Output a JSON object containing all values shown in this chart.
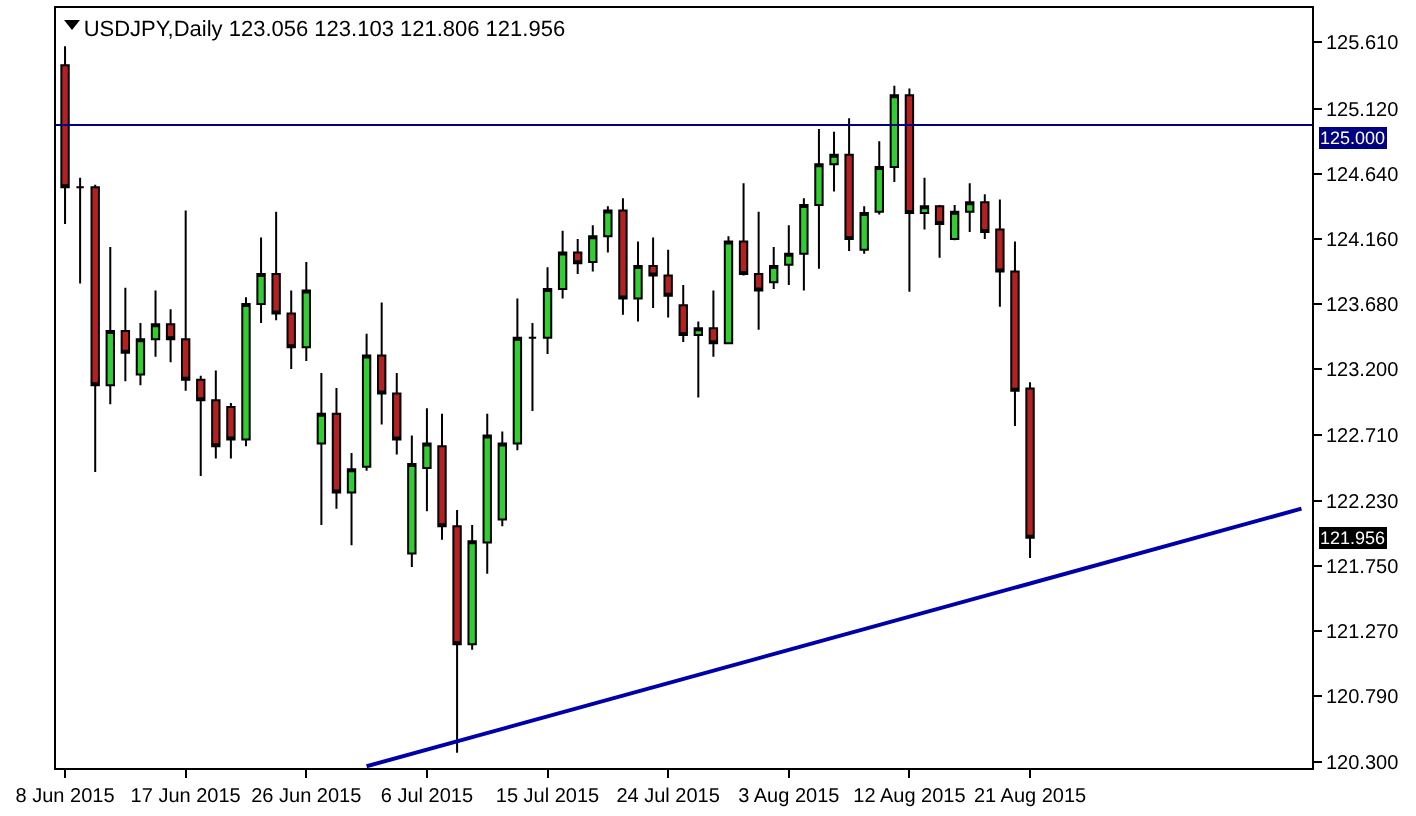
{
  "chart_data": {
    "type": "candlestick",
    "title": "USDJPY,Daily 123.056 123.103 121.806 121.956",
    "categories": [
      "8 Jun 2015",
      null,
      null,
      null,
      null,
      null,
      null,
      null,
      "17 Jun 2015",
      null,
      null,
      null,
      null,
      null,
      null,
      null,
      "26 Jun 2015",
      null,
      null,
      null,
      null,
      null,
      null,
      null,
      "6 Jul 2015",
      null,
      null,
      null,
      null,
      null,
      null,
      null,
      "15 Jul 2015",
      null,
      null,
      null,
      null,
      null,
      null,
      null,
      "24 Jul 2015",
      null,
      null,
      null,
      null,
      null,
      null,
      null,
      "3 Aug 2015",
      null,
      null,
      null,
      null,
      null,
      null,
      null,
      "12 Aug 2015",
      null,
      null,
      null,
      null,
      null,
      null,
      null,
      "21 Aug 2015",
      null,
      null,
      null,
      null,
      null,
      null,
      null,
      null,
      null,
      null,
      null,
      null,
      null,
      null,
      null,
      null,
      null,
      null
    ],
    "ohlc": [
      [
        125.44,
        125.58,
        124.27,
        124.54
      ],
      [
        124.54,
        124.61,
        123.83,
        124.54
      ],
      [
        124.54,
        124.56,
        122.44,
        123.08
      ],
      [
        123.08,
        124.1,
        122.94,
        123.48
      ],
      [
        123.48,
        123.8,
        123.11,
        123.32
      ],
      [
        123.16,
        123.54,
        123.08,
        123.42
      ],
      [
        123.42,
        123.78,
        123.29,
        123.53
      ],
      [
        123.53,
        123.64,
        123.25,
        123.42
      ],
      [
        123.42,
        124.37,
        123.04,
        123.12
      ],
      [
        123.12,
        123.15,
        122.41,
        122.97
      ],
      [
        122.97,
        123.19,
        122.54,
        122.63
      ],
      [
        122.92,
        122.95,
        122.54,
        122.68
      ],
      [
        122.68,
        123.73,
        122.63,
        123.68
      ],
      [
        123.68,
        124.17,
        123.54,
        123.9
      ],
      [
        123.9,
        124.36,
        123.56,
        123.61
      ],
      [
        123.61,
        123.78,
        123.2,
        123.36
      ],
      [
        123.36,
        123.99,
        123.26,
        123.78
      ],
      [
        122.65,
        123.17,
        122.05,
        122.87
      ],
      [
        122.87,
        123.06,
        122.17,
        122.29
      ],
      [
        122.29,
        122.58,
        121.9,
        122.46
      ],
      [
        122.48,
        123.46,
        122.45,
        123.3
      ],
      [
        123.3,
        123.69,
        122.79,
        123.02
      ],
      [
        123.02,
        123.17,
        122.57,
        122.68
      ],
      [
        121.84,
        122.71,
        121.74,
        122.5
      ],
      [
        122.47,
        122.91,
        122.15,
        122.65
      ],
      [
        122.63,
        122.87,
        121.94,
        122.04
      ],
      [
        122.04,
        122.16,
        120.37,
        121.17
      ],
      [
        121.17,
        122.05,
        121.13,
        121.93
      ],
      [
        121.92,
        122.87,
        121.69,
        122.71
      ],
      [
        122.09,
        122.74,
        122.04,
        122.65
      ],
      [
        122.65,
        123.72,
        122.6,
        123.43
      ],
      [
        123.43,
        123.54,
        122.89,
        123.43
      ],
      [
        123.43,
        123.95,
        123.31,
        123.79
      ],
      [
        123.79,
        124.22,
        123.72,
        124.06
      ],
      [
        124.06,
        124.16,
        123.9,
        123.98
      ],
      [
        123.99,
        124.26,
        123.92,
        124.18
      ],
      [
        124.18,
        124.4,
        124.06,
        124.37
      ],
      [
        124.37,
        124.46,
        123.6,
        123.72
      ],
      [
        123.72,
        124.14,
        123.55,
        123.96
      ],
      [
        123.96,
        124.17,
        123.65,
        123.89
      ],
      [
        123.89,
        124.08,
        123.58,
        123.74
      ],
      [
        123.67,
        123.82,
        123.4,
        123.45
      ],
      [
        123.45,
        123.55,
        122.99,
        123.5
      ],
      [
        123.5,
        123.78,
        123.29,
        123.39
      ],
      [
        123.39,
        124.18,
        123.39,
        124.14
      ],
      [
        124.14,
        124.57,
        123.89,
        123.9
      ],
      [
        123.9,
        124.36,
        123.49,
        123.78
      ],
      [
        123.84,
        124.1,
        123.79,
        123.96
      ],
      [
        123.97,
        124.26,
        123.82,
        124.05
      ],
      [
        124.05,
        124.46,
        123.78,
        124.41
      ],
      [
        124.41,
        124.97,
        123.94,
        124.71
      ],
      [
        124.71,
        124.95,
        124.51,
        124.78
      ],
      [
        124.78,
        125.05,
        124.07,
        124.16
      ],
      [
        124.08,
        124.4,
        124.05,
        124.35
      ],
      [
        124.36,
        124.88,
        124.34,
        124.69
      ],
      [
        124.69,
        125.29,
        124.58,
        125.22
      ],
      [
        125.22,
        125.27,
        123.77,
        124.35
      ],
      [
        124.35,
        124.61,
        124.23,
        124.4
      ],
      [
        124.4,
        124.41,
        124.02,
        124.27
      ],
      [
        124.16,
        124.41,
        124.15,
        124.36
      ],
      [
        124.36,
        124.57,
        124.21,
        124.43
      ],
      [
        124.43,
        124.49,
        124.16,
        124.21
      ],
      [
        124.23,
        124.45,
        123.66,
        123.92
      ],
      [
        123.92,
        124.14,
        122.78,
        123.04
      ],
      [
        123.056,
        123.103,
        121.806,
        121.956
      ],
      null,
      null,
      null,
      null,
      null,
      null,
      null,
      null,
      null,
      null,
      null,
      null,
      null,
      null,
      null,
      null,
      null,
      null
    ],
    "colors": [
      "#b22222",
      "#000000",
      "#b22222",
      "#32cd32",
      "#b22222",
      "#32cd32",
      "#32cd32",
      "#b22222",
      "#b22222",
      "#b22222",
      "#b22222",
      "#b22222",
      "#32cd32",
      "#32cd32",
      "#b22222",
      "#b22222",
      "#32cd32",
      "#32cd32",
      "#b22222",
      "#32cd32",
      "#32cd32",
      "#b22222",
      "#b22222",
      "#32cd32",
      "#32cd32",
      "#b22222",
      "#b22222",
      "#32cd32",
      "#32cd32",
      "#32cd32",
      "#32cd32",
      "#000000",
      "#32cd32",
      "#32cd32",
      "#b22222",
      "#32cd32",
      "#32cd32",
      "#b22222",
      "#32cd32",
      "#b22222",
      "#b22222",
      "#b22222",
      "#32cd32",
      "#b22222",
      "#32cd32",
      "#b22222",
      "#b22222",
      "#32cd32",
      "#32cd32",
      "#32cd32",
      "#32cd32",
      "#32cd32",
      "#b22222",
      "#32cd32",
      "#32cd32",
      "#32cd32",
      "#b22222",
      "#32cd32",
      "#b22222",
      "#32cd32",
      "#32cd32",
      "#b22222",
      "#b22222",
      "#b22222",
      "#b22222",
      null,
      null,
      null,
      null,
      null,
      null,
      null,
      null,
      null,
      null,
      null,
      null,
      null,
      null,
      null,
      null,
      null,
      null
    ],
    "series": [
      {
        "type": "line",
        "color": "#0000aa",
        "values": [
          null,
          null,
          null,
          null,
          null,
          null,
          null,
          null,
          null,
          null,
          null,
          null,
          null,
          null,
          null,
          null,
          null,
          null,
          null,
          null,
          120.27,
          null,
          null,
          null,
          null,
          null,
          null,
          null,
          null,
          null,
          null,
          null,
          null,
          null,
          null,
          null,
          null,
          null,
          null,
          null,
          null,
          null,
          null,
          null,
          null,
          null,
          null,
          null,
          null,
          null,
          null,
          null,
          null,
          null,
          null,
          null,
          null,
          null,
          null,
          null,
          null,
          null,
          null,
          null,
          null,
          null,
          null,
          null,
          null,
          null,
          null,
          null,
          null,
          null,
          null,
          null,
          null,
          null,
          null,
          null,
          null,
          null,
          122.17
        ]
      }
    ],
    "ref_lines": [
      {
        "axis": "y",
        "value": 125.0,
        "label": "125.000",
        "color": "#000080"
      }
    ],
    "annotations": [
      {
        "text": "121.956",
        "y": 121.956
      }
    ],
    "ylim": [
      120.257,
      125.863
    ],
    "yticks": [
      {
        "value": 120.3,
        "label": "120.300"
      },
      {
        "value": 120.79,
        "label": "120.790"
      },
      {
        "value": 121.27,
        "label": "121.270"
      },
      {
        "value": 121.75,
        "label": "121.750"
      },
      {
        "value": 122.23,
        "label": "122.230"
      },
      {
        "value": 122.71,
        "label": "122.710"
      },
      {
        "value": 123.2,
        "label": "123.200"
      },
      {
        "value": 123.68,
        "label": "123.680"
      },
      {
        "value": 124.16,
        "label": "124.160"
      },
      {
        "value": 124.64,
        "label": "124.640"
      },
      {
        "value": 125.12,
        "label": "125.120"
      },
      {
        "value": 125.61,
        "label": "125.610"
      }
    ]
  }
}
